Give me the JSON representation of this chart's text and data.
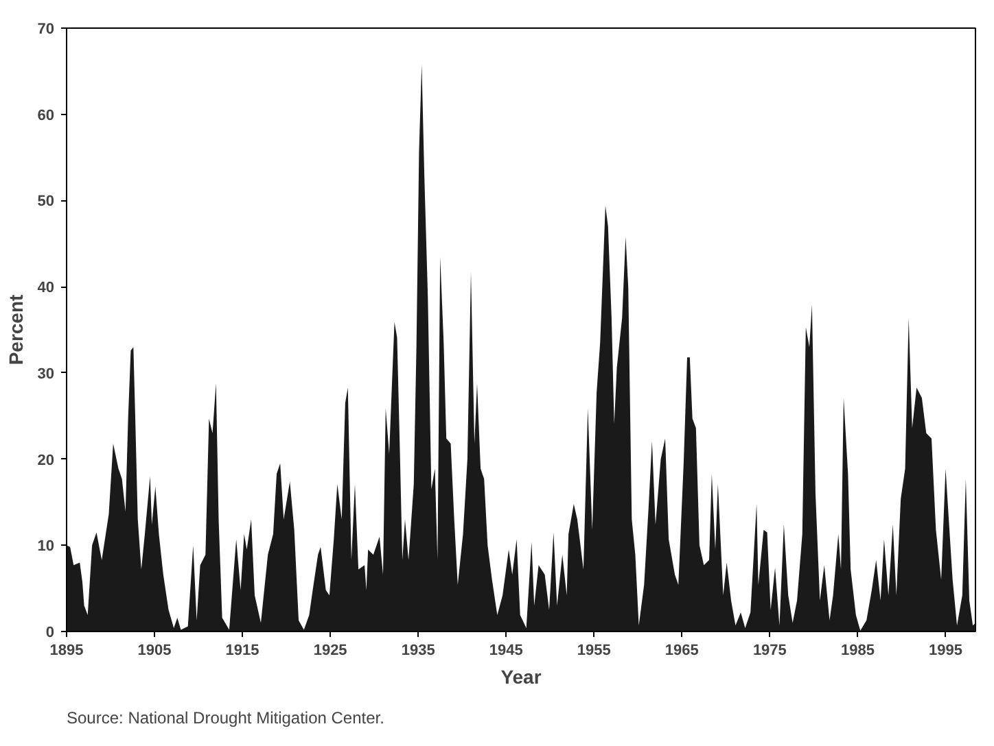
{
  "chart_data": {
    "type": "area",
    "xlabel": "Year",
    "ylabel": "Percent",
    "annotations": [
      "Source: National Drought Mitigation Center."
    ],
    "xlim": [
      1895,
      1998.4
    ],
    "ylim": [
      0,
      70
    ],
    "xticks": [
      1895,
      1905,
      1915,
      1925,
      1935,
      1945,
      1955,
      1965,
      1975,
      1985,
      1995
    ],
    "yticks": [
      0,
      10,
      20,
      30,
      40,
      50,
      60,
      70
    ],
    "grid": false,
    "x": [
      1895,
      1895.4,
      1895.8,
      1896.5,
      1896.8,
      1897,
      1897.4,
      1897.9,
      1898.4,
      1899,
      1899.8,
      1900.3,
      1900.9,
      1901.3,
      1901.7,
      1902,
      1902.3,
      1902.6,
      1902.8,
      1903.1,
      1903.5,
      1903.9,
      1904.5,
      1904.7,
      1905.1,
      1905.5,
      1906,
      1906.6,
      1907.2,
      1907.6,
      1908,
      1908.8,
      1909.4,
      1909.8,
      1910.2,
      1910.8,
      1911.2,
      1911.6,
      1912,
      1912.3,
      1912.7,
      1913.5,
      1914.3,
      1914.8,
      1915.2,
      1915.5,
      1916,
      1916.4,
      1917.1,
      1917.9,
      1918.5,
      1918.9,
      1919.3,
      1919.7,
      1920.4,
      1920.9,
      1921.4,
      1922,
      1922.6,
      1923,
      1923.6,
      1923.9,
      1924.5,
      1924.9,
      1925.4,
      1925.8,
      1926.3,
      1926.7,
      1927,
      1927.4,
      1927.8,
      1928.2,
      1928.9,
      1929.1,
      1929.3,
      1929.9,
      1930.6,
      1931,
      1931.3,
      1931.7,
      1932,
      1932.3,
      1932.6,
      1932.9,
      1933.2,
      1933.5,
      1933.9,
      1934.5,
      1934.8,
      1935.1,
      1935.4,
      1935.7,
      1936.1,
      1936.5,
      1936.9,
      1937.2,
      1937.5,
      1937.9,
      1938.2,
      1938.7,
      1939.1,
      1939.5,
      1940.1,
      1940.6,
      1941,
      1941.4,
      1941.7,
      1942.1,
      1942.5,
      1942.9,
      1943.4,
      1944,
      1944.6,
      1945.3,
      1945.7,
      1946.2,
      1946.6,
      1947.3,
      1947.9,
      1948.2,
      1948.7,
      1949.4,
      1949.9,
      1950.4,
      1950.8,
      1951.4,
      1951.9,
      1952.1,
      1952.7,
      1953.1,
      1953.8,
      1954.3,
      1954.8,
      1955.3,
      1955.7,
      1956.3,
      1956.6,
      1957,
      1957.3,
      1957.6,
      1958.2,
      1958.6,
      1958.9,
      1959.3,
      1959.7,
      1960.1,
      1960.7,
      1961.2,
      1961.6,
      1962,
      1962.6,
      1963.1,
      1963.5,
      1964.2,
      1964.6,
      1965.2,
      1965.6,
      1965.9,
      1966.2,
      1966.6,
      1967,
      1967.5,
      1968.1,
      1968.4,
      1968.8,
      1969.1,
      1969.7,
      1970.1,
      1970.6,
      1971.1,
      1971.7,
      1972.2,
      1972.8,
      1973.5,
      1973.7,
      1974.3,
      1974.7,
      1975.1,
      1975.6,
      1976.1,
      1976.6,
      1977.1,
      1977.6,
      1978.1,
      1978.7,
      1979.1,
      1979.5,
      1979.8,
      1980.2,
      1980.7,
      1981.2,
      1981.8,
      1982.2,
      1982.8,
      1983.1,
      1983.4,
      1983.9,
      1984.2,
      1984.8,
      1985.3,
      1986,
      1986.6,
      1987.1,
      1987.6,
      1988,
      1988.5,
      1989,
      1989.4,
      1989.9,
      1990.4,
      1990.8,
      1991.2,
      1991.7,
      1992.3,
      1992.8,
      1993.4,
      1993.9,
      1994.5,
      1995,
      1995.4,
      1995.8,
      1996.3,
      1996.9,
      1997.3,
      1997.7,
      1998.1,
      1998.4
    ],
    "series": [
      {
        "color": "#1a1a1a",
        "values": [
          10,
          9.8,
          7.7,
          8,
          5.7,
          3,
          1.9,
          10,
          11.5,
          8.3,
          13.6,
          21.8,
          18.9,
          17.7,
          13.9,
          24.7,
          32.6,
          33,
          25.3,
          13,
          7.2,
          11.3,
          18,
          12.4,
          16.8,
          11.3,
          6.6,
          2.5,
          0.4,
          1.6,
          0.2,
          0.6,
          10,
          1.3,
          7.7,
          8.9,
          24.7,
          23,
          28.8,
          13,
          1.6,
          0.2,
          10.7,
          4.8,
          11.3,
          9.5,
          13,
          4.2,
          1,
          8.9,
          11.3,
          18.3,
          19.5,
          13,
          17.4,
          11.8,
          1.3,
          0.2,
          1.9,
          4.8,
          8.9,
          9.8,
          4.8,
          4.2,
          10.7,
          17.1,
          13,
          26.5,
          28.3,
          8.3,
          17.1,
          7.2,
          7.7,
          4.8,
          9.5,
          8.9,
          11,
          6.6,
          25.9,
          20.6,
          28.3,
          35.9,
          34.1,
          21.8,
          8.3,
          13,
          8.3,
          17.1,
          33,
          55.8,
          65.8,
          52.9,
          38.8,
          16.5,
          18.9,
          8.3,
          43.5,
          33.5,
          22.4,
          21.8,
          13,
          5.4,
          11.3,
          20,
          41.7,
          21.8,
          28.8,
          18.9,
          17.7,
          10,
          6,
          1.9,
          4.2,
          9.5,
          6.6,
          10.7,
          1.9,
          0.4,
          10.4,
          3,
          7.7,
          6.6,
          2.5,
          11.5,
          3,
          8.9,
          4.2,
          11.3,
          14.8,
          13,
          7.2,
          25.9,
          11.8,
          27.7,
          33.5,
          49.4,
          47,
          36.4,
          24.1,
          30.6,
          36.4,
          45.8,
          40,
          13,
          8.9,
          0.7,
          5.4,
          14.2,
          22.1,
          12.4,
          20,
          22.4,
          10.7,
          6.6,
          5.4,
          19.5,
          31.8,
          31.8,
          24.7,
          23.6,
          10,
          7.7,
          8.3,
          18.3,
          9.5,
          17.1,
          4.2,
          8,
          3.6,
          0.7,
          2.2,
          0.4,
          2.2,
          14.8,
          5.4,
          11.8,
          11.5,
          2.5,
          7.4,
          0.7,
          12.4,
          4.2,
          1,
          3.6,
          11.3,
          35.3,
          33,
          37.9,
          16,
          3.6,
          7.7,
          1.3,
          4.2,
          11.3,
          7.2,
          27.1,
          18.3,
          7.2,
          1.9,
          0.1,
          1.3,
          4.8,
          8.3,
          3.6,
          10.7,
          4.2,
          12.4,
          4.2,
          15.4,
          18.9,
          36.4,
          23.6,
          28.3,
          27.1,
          23,
          22.4,
          11.8,
          6,
          18.9,
          12.4,
          6,
          0.7,
          4.2,
          17.7,
          3.6,
          0.7,
          1
        ]
      }
    ]
  }
}
